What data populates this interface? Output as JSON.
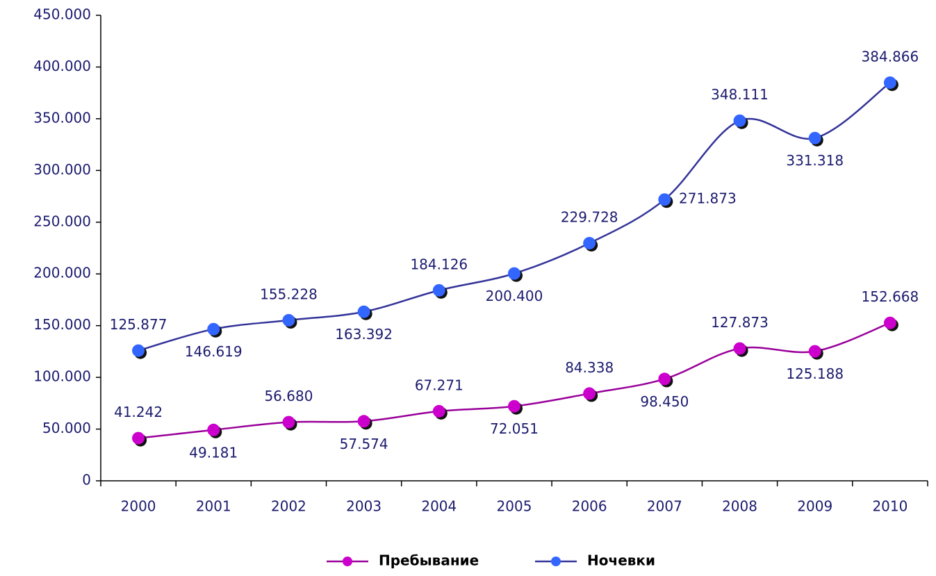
{
  "chart_data": {
    "type": "line",
    "categories": [
      "2000",
      "2001",
      "2002",
      "2003",
      "2004",
      "2005",
      "2006",
      "2007",
      "2008",
      "2009",
      "2010"
    ],
    "series": [
      {
        "name": "Пребывание",
        "color": "#cc00cc",
        "line_color": "#990099",
        "values": [
          41242,
          49181,
          56680,
          57574,
          67271,
          72051,
          84338,
          98450,
          127873,
          125188,
          152668
        ],
        "value_labels": [
          "41.242",
          "49.181",
          "56.680",
          "57.574",
          "67.271",
          "72.051",
          "84.338",
          "98.450",
          "127.873",
          "125.188",
          "152.668"
        ]
      },
      {
        "name": "Ночевки",
        "color": "#3366ff",
        "line_color": "#333399",
        "values": [
          125877,
          146619,
          155228,
          163392,
          184126,
          200400,
          229728,
          271873,
          348111,
          331318,
          384866
        ],
        "value_labels": [
          "125.877",
          "146.619",
          "155.228",
          "163.392",
          "184.126",
          "200.400",
          "229.728",
          "271.873",
          "348.111",
          "331.318",
          "384.866"
        ]
      }
    ],
    "ylim": [
      0,
      450000
    ],
    "yticks": [
      0,
      {
        "value": 50000,
        "label": "50.000"
      },
      {
        "value": 100000,
        "label": "100.000"
      },
      {
        "value": 150000,
        "label": "150.000"
      },
      {
        "value": 200000,
        "label": "200.000"
      },
      {
        "value": 250000,
        "label": "250.000"
      },
      {
        "value": 300000,
        "label": "300.000"
      },
      {
        "value": 350000,
        "label": "350.000"
      },
      {
        "value": 400000,
        "label": "400.000"
      },
      {
        "value": 450000,
        "label": "450.000"
      }
    ],
    "legend": "bottom"
  }
}
